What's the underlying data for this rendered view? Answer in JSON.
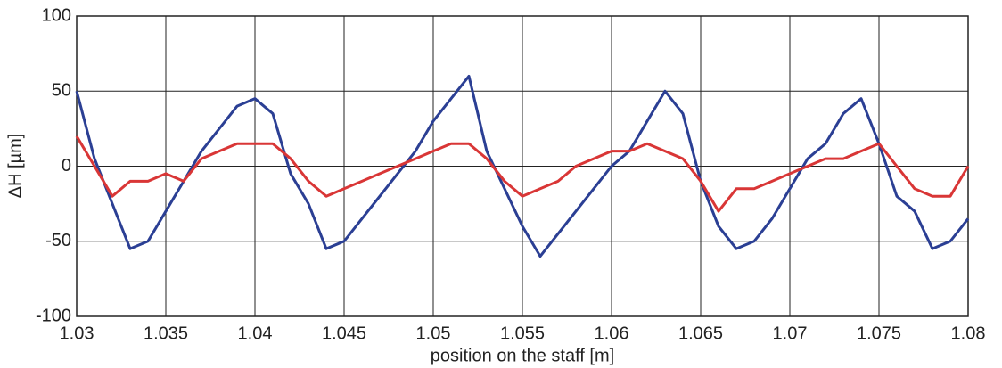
{
  "chart_data": {
    "type": "line",
    "xlabel": "position on the staff [m]",
    "ylabel": "ΔH [µm]",
    "x": [
      1.03,
      1.031,
      1.032,
      1.033,
      1.034,
      1.035,
      1.036,
      1.037,
      1.038,
      1.039,
      1.04,
      1.041,
      1.042,
      1.043,
      1.044,
      1.045,
      1.046,
      1.047,
      1.048,
      1.049,
      1.05,
      1.051,
      1.052,
      1.053,
      1.054,
      1.055,
      1.056,
      1.057,
      1.058,
      1.059,
      1.06,
      1.061,
      1.062,
      1.063,
      1.064,
      1.065,
      1.066,
      1.067,
      1.068,
      1.069,
      1.07,
      1.071,
      1.072,
      1.073,
      1.074,
      1.075,
      1.076,
      1.077,
      1.078,
      1.079,
      1.08
    ],
    "series": [
      {
        "color": "#2b3f94",
        "values": [
          50,
          5,
          -25,
          -55,
          -50,
          -30,
          -10,
          10,
          25,
          40,
          45,
          35,
          -5,
          -25,
          -55,
          -50,
          -35,
          -20,
          -5,
          10,
          30,
          45,
          60,
          10,
          -15,
          -40,
          -60,
          -45,
          -30,
          -15,
          0,
          10,
          30,
          50,
          35,
          -10,
          -40,
          -55,
          -50,
          -35,
          -15,
          5,
          15,
          35,
          45,
          15,
          -20,
          -30,
          -55,
          -50,
          -35
        ]
      },
      {
        "color": "#d93636",
        "values": [
          20,
          0,
          -20,
          -10,
          -10,
          -5,
          -10,
          5,
          10,
          15,
          15,
          15,
          5,
          -10,
          -20,
          -15,
          -10,
          -5,
          0,
          5,
          10,
          15,
          15,
          5,
          -10,
          -20,
          -15,
          -10,
          0,
          5,
          10,
          10,
          15,
          10,
          5,
          -10,
          -30,
          -15,
          -15,
          -10,
          -5,
          0,
          5,
          5,
          10,
          15,
          0,
          -15,
          -20,
          -20,
          0
        ]
      }
    ],
    "xlim": [
      1.03,
      1.08
    ],
    "xticks": [
      1.03,
      1.035,
      1.04,
      1.045,
      1.05,
      1.055,
      1.06,
      1.065,
      1.07,
      1.075,
      1.08
    ],
    "ylim": [
      -100,
      100
    ],
    "yticks": [
      -100,
      -50,
      0,
      50,
      100
    ],
    "grid": true
  }
}
